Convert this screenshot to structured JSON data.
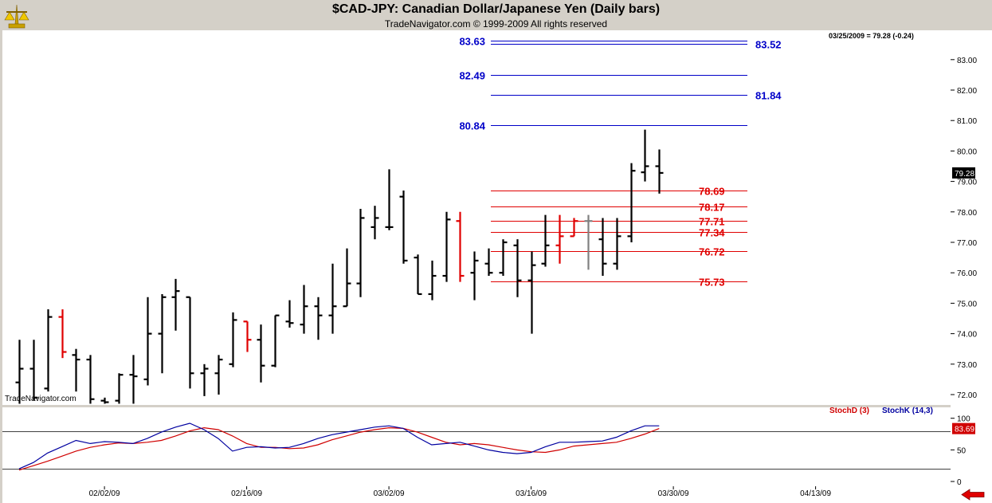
{
  "header": {
    "title": "$CAD-JPY:  Canadian Dollar/Japanese Yen  (Daily bars)",
    "subtitle": "TradeNavigator.com © 1999-2009 All rights reserved",
    "last_info": "03/25/2009 = 79.28 (-0.24)",
    "watermark": "TradeNavigator.com"
  },
  "colors": {
    "bar_up": "#000000",
    "bar_highlight": "#e00000",
    "bar_neutral": "#808080",
    "level_blue": "#0000c8",
    "level_red": "#e00000",
    "stoch_d": "#d00000",
    "stoch_k": "#0000a0",
    "price_tag_bg": "#000000",
    "stoch_tag_bg": "#d00000"
  },
  "icons": {
    "logo": "balance-scale-icon",
    "scroll": "left-arrow-icon"
  },
  "chart_data": [
    {
      "type": "ohlc",
      "title": "$CAD-JPY:  Canadian Dollar/Japanese Yen  (Daily bars)",
      "x_tick_labels": [
        "02/02/09",
        "02/16/09",
        "03/02/09",
        "03/16/09",
        "03/30/09",
        "04/13/09"
      ],
      "x_tick_bar_index": [
        6,
        16,
        26,
        36,
        46,
        56
      ],
      "ylim": [
        71.7,
        83.8
      ],
      "y_ticks": [
        "72.00",
        "73.00",
        "74.00",
        "75.00",
        "76.00",
        "77.00",
        "78.00",
        "79.00",
        "80.00",
        "81.00",
        "82.00",
        "83.00"
      ],
      "last_price_tag": "79.28",
      "bars": [
        {
          "o": 72.4,
          "h": 73.8,
          "l": 71.7,
          "c": 72.85,
          "color": "up"
        },
        {
          "o": 72.85,
          "h": 73.8,
          "l": 71.8,
          "c": 71.9,
          "color": "up"
        },
        {
          "o": 72.2,
          "h": 74.8,
          "l": 72.1,
          "c": 74.55,
          "color": "up"
        },
        {
          "o": 74.55,
          "h": 74.8,
          "l": 73.2,
          "c": 73.4,
          "color": "red"
        },
        {
          "o": 73.3,
          "h": 73.5,
          "l": 72.1,
          "c": 73.15,
          "color": "up"
        },
        {
          "o": 73.15,
          "h": 73.3,
          "l": 71.7,
          "c": 71.85,
          "color": "up"
        },
        {
          "o": 71.8,
          "h": 71.9,
          "l": 71.7,
          "c": 71.75,
          "color": "up"
        },
        {
          "o": 71.8,
          "h": 72.7,
          "l": 71.7,
          "c": 72.65,
          "color": "up"
        },
        {
          "o": 72.65,
          "h": 73.3,
          "l": 71.7,
          "c": 72.6,
          "color": "up"
        },
        {
          "o": 72.5,
          "h": 75.2,
          "l": 72.3,
          "c": 74.0,
          "color": "up"
        },
        {
          "o": 74.0,
          "h": 75.3,
          "l": 72.7,
          "c": 75.2,
          "color": "up"
        },
        {
          "o": 75.2,
          "h": 75.8,
          "l": 74.1,
          "c": 75.4,
          "color": "up"
        },
        {
          "o": 75.2,
          "h": 75.2,
          "l": 72.2,
          "c": 72.7,
          "color": "up"
        },
        {
          "o": 72.7,
          "h": 73.0,
          "l": 71.95,
          "c": 72.85,
          "color": "up"
        },
        {
          "o": 72.7,
          "h": 73.3,
          "l": 72.0,
          "c": 73.15,
          "color": "up"
        },
        {
          "o": 73.0,
          "h": 74.7,
          "l": 72.9,
          "c": 74.45,
          "color": "up"
        },
        {
          "o": 74.4,
          "h": 74.4,
          "l": 73.4,
          "c": 73.8,
          "color": "red"
        },
        {
          "o": 73.8,
          "h": 74.3,
          "l": 72.4,
          "c": 72.95,
          "color": "up"
        },
        {
          "o": 72.95,
          "h": 74.6,
          "l": 72.9,
          "c": 74.6,
          "color": "up"
        },
        {
          "o": 74.4,
          "h": 75.1,
          "l": 74.2,
          "c": 74.35,
          "color": "up"
        },
        {
          "o": 74.3,
          "h": 75.6,
          "l": 74.0,
          "c": 74.9,
          "color": "up"
        },
        {
          "o": 74.9,
          "h": 75.2,
          "l": 73.8,
          "c": 74.6,
          "color": "up"
        },
        {
          "o": 74.6,
          "h": 76.3,
          "l": 74.0,
          "c": 74.9,
          "color": "up"
        },
        {
          "o": 74.9,
          "h": 76.8,
          "l": 74.9,
          "c": 75.65,
          "color": "up"
        },
        {
          "o": 75.65,
          "h": 78.1,
          "l": 75.2,
          "c": 77.8,
          "color": "up"
        },
        {
          "o": 77.5,
          "h": 78.2,
          "l": 77.1,
          "c": 77.8,
          "color": "up"
        },
        {
          "o": 77.5,
          "h": 79.4,
          "l": 77.4,
          "c": 77.5,
          "color": "up"
        },
        {
          "o": 78.5,
          "h": 78.7,
          "l": 76.3,
          "c": 76.4,
          "color": "up"
        },
        {
          "o": 76.5,
          "h": 76.6,
          "l": 75.3,
          "c": 75.3,
          "color": "up"
        },
        {
          "o": 75.3,
          "h": 76.4,
          "l": 75.1,
          "c": 75.9,
          "color": "up"
        },
        {
          "o": 75.9,
          "h": 78.0,
          "l": 75.7,
          "c": 77.75,
          "color": "up"
        },
        {
          "o": 77.7,
          "h": 78.0,
          "l": 75.7,
          "c": 75.9,
          "color": "red"
        },
        {
          "o": 76.0,
          "h": 76.7,
          "l": 75.1,
          "c": 76.4,
          "color": "up"
        },
        {
          "o": 76.3,
          "h": 76.8,
          "l": 75.9,
          "c": 76.0,
          "color": "up"
        },
        {
          "o": 76.0,
          "h": 77.1,
          "l": 75.9,
          "c": 77.0,
          "color": "up"
        },
        {
          "o": 76.9,
          "h": 77.1,
          "l": 75.2,
          "c": 75.75,
          "color": "up"
        },
        {
          "o": 75.75,
          "h": 76.7,
          "l": 74.0,
          "c": 76.25,
          "color": "up"
        },
        {
          "o": 76.3,
          "h": 77.9,
          "l": 76.2,
          "c": 76.9,
          "color": "up"
        },
        {
          "o": 76.9,
          "h": 77.9,
          "l": 76.3,
          "c": 77.2,
          "color": "red"
        },
        {
          "o": 77.2,
          "h": 77.8,
          "l": 77.2,
          "c": 77.7,
          "color": "red"
        },
        {
          "o": 77.7,
          "h": 77.9,
          "l": 76.1,
          "c": 77.7,
          "color": "gray"
        },
        {
          "o": 77.1,
          "h": 77.8,
          "l": 75.9,
          "c": 76.3,
          "color": "up"
        },
        {
          "o": 76.3,
          "h": 77.8,
          "l": 76.1,
          "c": 77.2,
          "color": "up"
        },
        {
          "o": 77.2,
          "h": 79.6,
          "l": 77.0,
          "c": 79.35,
          "color": "up"
        },
        {
          "o": 79.3,
          "h": 80.7,
          "l": 79.0,
          "c": 79.5,
          "color": "up"
        },
        {
          "o": 79.5,
          "h": 80.05,
          "l": 78.6,
          "c": 79.28,
          "color": "up"
        }
      ],
      "levels": [
        {
          "value": 83.63,
          "label": "83.63",
          "color": "blue",
          "label_side": "left"
        },
        {
          "value": 83.52,
          "label": "83.52",
          "color": "blue",
          "label_side": "right"
        },
        {
          "value": 82.49,
          "label": "82.49",
          "color": "blue",
          "label_side": "left"
        },
        {
          "value": 81.84,
          "label": "81.84",
          "color": "blue",
          "label_side": "right"
        },
        {
          "value": 80.84,
          "label": "80.84",
          "color": "blue",
          "label_side": "left"
        },
        {
          "value": 78.69,
          "label": "78.69",
          "color": "red",
          "label_side": "right"
        },
        {
          "value": 78.17,
          "label": "78.17",
          "color": "red",
          "label_side": "right"
        },
        {
          "value": 77.71,
          "label": "77.71",
          "color": "red",
          "label_side": "right"
        },
        {
          "value": 77.34,
          "label": "77.34",
          "color": "red",
          "label_side": "right"
        },
        {
          "value": 76.72,
          "label": "76.72",
          "color": "red",
          "label_side": "right"
        },
        {
          "value": 75.73,
          "label": "75.73",
          "color": "red",
          "label_side": "right"
        }
      ]
    },
    {
      "type": "line",
      "ylim": [
        -5,
        110
      ],
      "y_ticks": [
        "0",
        "50",
        "100"
      ],
      "reference_lines": [
        20,
        80
      ],
      "last_value_tag": "83.69",
      "series": [
        {
          "name": "StochD (3)",
          "color": "red",
          "values": [
            18,
            25,
            32,
            40,
            48,
            54,
            58,
            61,
            60,
            62,
            65,
            72,
            80,
            85,
            82,
            72,
            60,
            54,
            54,
            52,
            53,
            58,
            66,
            72,
            78,
            82,
            85,
            84,
            78,
            70,
            62,
            58,
            60,
            58,
            54,
            50,
            47,
            46,
            50,
            56,
            58,
            60,
            62,
            68,
            75,
            83.69
          ]
        },
        {
          "name": "StochK (14,3)",
          "color": "blue",
          "values": [
            20,
            30,
            45,
            55,
            65,
            60,
            63,
            62,
            60,
            68,
            78,
            86,
            92,
            82,
            68,
            48,
            54,
            55,
            53,
            54,
            60,
            68,
            74,
            78,
            82,
            86,
            88,
            84,
            70,
            58,
            60,
            62,
            56,
            50,
            46,
            44,
            46,
            55,
            62,
            62,
            63,
            64,
            70,
            80,
            88,
            88
          ]
        }
      ]
    }
  ]
}
